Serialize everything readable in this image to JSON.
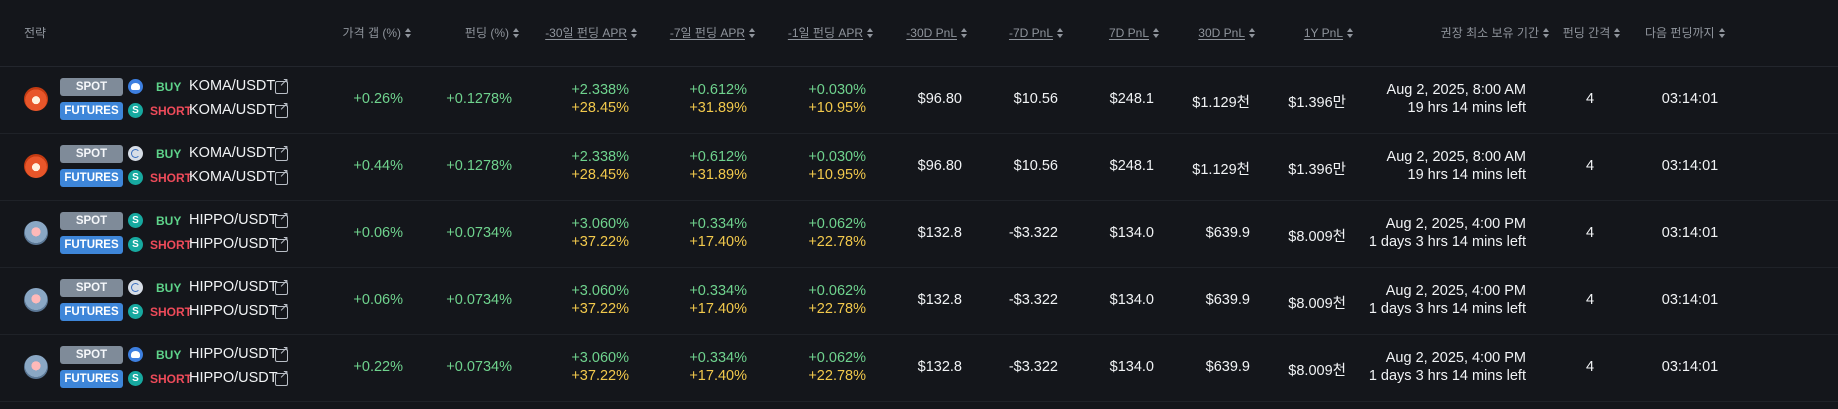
{
  "columns": {
    "strategy": "전략",
    "price_gap": "가격 갭 (%)",
    "funding": "펀딩 (%)",
    "apr_30d": "-30일 펀딩 APR",
    "apr_7d": "-7일 펀딩 APR",
    "apr_1d": "-1일 펀딩 APR",
    "pnl_m30d": "-30D PnL",
    "pnl_m7d": "-7D PnL",
    "pnl_7d": "7D PnL",
    "pnl_30d": "30D PnL",
    "pnl_1y": "1Y PnL",
    "min_hold": "권장 최소 보유 기간",
    "interval": "펀딩 간격",
    "next_funding": "다음 펀딩까지"
  },
  "icons": {
    "sort": "sort-icon",
    "external_link": "external-link-icon"
  },
  "colors": {
    "background": "#14161b",
    "positive": "#6fd38e",
    "apr_secondary": "#f2c94c",
    "buy": "#5ed38a",
    "short": "#ef4b5a",
    "spot_badge": "#7f8b99",
    "futures_badge": "#3e86d9"
  },
  "rows": [
    {
      "coin": "koma",
      "spot_label": "SPOT",
      "spot_side": "BUY",
      "spot_pair": "KOMA/USDT",
      "spot_exchange_icon": "blue",
      "futures_label": "FUTURES",
      "futures_side": "SHORT",
      "futures_pair": "KOMA/USDT",
      "futures_exchange_icon": "teal",
      "price_gap": "+0.26%",
      "funding": "+0.1278%",
      "apr_30d": "+2.338%",
      "apr_30d_b": "+28.45%",
      "apr_7d": "+0.612%",
      "apr_7d_b": "+31.89%",
      "apr_1d": "+0.030%",
      "apr_1d_b": "+10.95%",
      "pnl_m30d": "$96.80",
      "pnl_m7d": "$10.56",
      "pnl_7d": "$248.1",
      "pnl_30d": "$1.129천",
      "pnl_1y": "$1.396만",
      "hold_date": "Aug 2, 2025, 8:00 AM",
      "hold_left": "19 hrs 14 mins left",
      "interval": "4",
      "next_funding": "03:14:01"
    },
    {
      "coin": "koma",
      "spot_label": "SPOT",
      "spot_side": "BUY",
      "spot_pair": "KOMA/USDT",
      "spot_exchange_icon": "gray",
      "futures_label": "FUTURES",
      "futures_side": "SHORT",
      "futures_pair": "KOMA/USDT",
      "futures_exchange_icon": "teal",
      "price_gap": "+0.44%",
      "funding": "+0.1278%",
      "apr_30d": "+2.338%",
      "apr_30d_b": "+28.45%",
      "apr_7d": "+0.612%",
      "apr_7d_b": "+31.89%",
      "apr_1d": "+0.030%",
      "apr_1d_b": "+10.95%",
      "pnl_m30d": "$96.80",
      "pnl_m7d": "$10.56",
      "pnl_7d": "$248.1",
      "pnl_30d": "$1.129천",
      "pnl_1y": "$1.396만",
      "hold_date": "Aug 2, 2025, 8:00 AM",
      "hold_left": "19 hrs 14 mins left",
      "interval": "4",
      "next_funding": "03:14:01"
    },
    {
      "coin": "hippo",
      "spot_label": "SPOT",
      "spot_side": "BUY",
      "spot_pair": "HIPPO/USDT",
      "spot_exchange_icon": "teal",
      "futures_label": "FUTURES",
      "futures_side": "SHORT",
      "futures_pair": "HIPPO/USDT",
      "futures_exchange_icon": "teal",
      "price_gap": "+0.06%",
      "funding": "+0.0734%",
      "apr_30d": "+3.060%",
      "apr_30d_b": "+37.22%",
      "apr_7d": "+0.334%",
      "apr_7d_b": "+17.40%",
      "apr_1d": "+0.062%",
      "apr_1d_b": "+22.78%",
      "pnl_m30d": "$132.8",
      "pnl_m7d": "-$3.322",
      "pnl_7d": "$134.0",
      "pnl_30d": "$639.9",
      "pnl_1y": "$8.009천",
      "hold_date": "Aug 2, 2025, 4:00 PM",
      "hold_left": "1 days 3 hrs 14 mins left",
      "interval": "4",
      "next_funding": "03:14:01"
    },
    {
      "coin": "hippo",
      "spot_label": "SPOT",
      "spot_side": "BUY",
      "spot_pair": "HIPPO/USDT",
      "spot_exchange_icon": "gray",
      "futures_label": "FUTURES",
      "futures_side": "SHORT",
      "futures_pair": "HIPPO/USDT",
      "futures_exchange_icon": "teal",
      "price_gap": "+0.06%",
      "funding": "+0.0734%",
      "apr_30d": "+3.060%",
      "apr_30d_b": "+37.22%",
      "apr_7d": "+0.334%",
      "apr_7d_b": "+17.40%",
      "apr_1d": "+0.062%",
      "apr_1d_b": "+22.78%",
      "pnl_m30d": "$132.8",
      "pnl_m7d": "-$3.322",
      "pnl_7d": "$134.0",
      "pnl_30d": "$639.9",
      "pnl_1y": "$8.009천",
      "hold_date": "Aug 2, 2025, 4:00 PM",
      "hold_left": "1 days 3 hrs 14 mins left",
      "interval": "4",
      "next_funding": "03:14:01"
    },
    {
      "coin": "hippo",
      "spot_label": "SPOT",
      "spot_side": "BUY",
      "spot_pair": "HIPPO/USDT",
      "spot_exchange_icon": "blue",
      "futures_label": "FUTURES",
      "futures_side": "SHORT",
      "futures_pair": "HIPPO/USDT",
      "futures_exchange_icon": "teal",
      "price_gap": "+0.22%",
      "funding": "+0.0734%",
      "apr_30d": "+3.060%",
      "apr_30d_b": "+37.22%",
      "apr_7d": "+0.334%",
      "apr_7d_b": "+17.40%",
      "apr_1d": "+0.062%",
      "apr_1d_b": "+22.78%",
      "pnl_m30d": "$132.8",
      "pnl_m7d": "-$3.322",
      "pnl_7d": "$134.0",
      "pnl_30d": "$639.9",
      "pnl_1y": "$8.009천",
      "hold_date": "Aug 2, 2025, 4:00 PM",
      "hold_left": "1 days 3 hrs 14 mins left",
      "interval": "4",
      "next_funding": "03:14:01"
    }
  ]
}
